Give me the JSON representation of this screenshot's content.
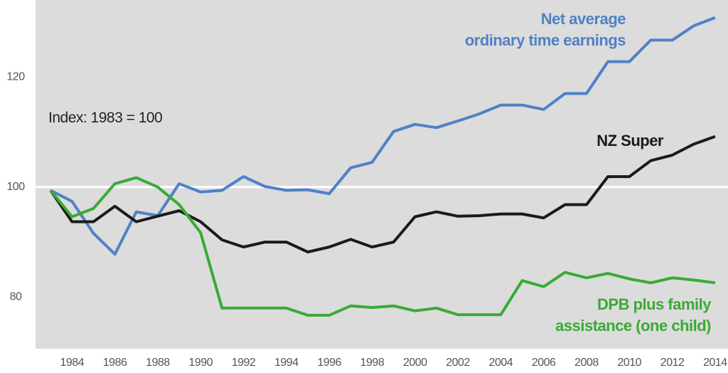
{
  "chart_data": {
    "type": "line",
    "annotation": "Index: 1983 = 100",
    "x": [
      1983,
      1984,
      1985,
      1986,
      1987,
      1988,
      1989,
      1990,
      1991,
      1992,
      1993,
      1994,
      1995,
      1996,
      1997,
      1998,
      1999,
      2000,
      2001,
      2002,
      2003,
      2004,
      2005,
      2006,
      2007,
      2008,
      2009,
      2010,
      2011,
      2012,
      2013,
      2014
    ],
    "series": [
      {
        "name": "Net average\nordinary time earnings",
        "color": "#4f81c7",
        "values": [
          99.4,
          97.4,
          91.6,
          87.8,
          95.5,
          94.8,
          100.6,
          99.1,
          99.4,
          101.9,
          100.1,
          99.4,
          99.5,
          98.8,
          103.5,
          104.5,
          110.1,
          111.4,
          110.8,
          112,
          113.3,
          114.9,
          114.9,
          114.1,
          117,
          117,
          122.8,
          122.8,
          126.7,
          126.7,
          129.3,
          130.8
        ]
      },
      {
        "name": "NZ Super",
        "color": "#1a1a1a",
        "values": [
          99.4,
          93.7,
          93.7,
          96.5,
          93.7,
          94.7,
          95.7,
          93.7,
          90.4,
          89.1,
          90,
          90,
          88.2,
          89.1,
          90.5,
          89.1,
          90,
          94.6,
          95.5,
          94.7,
          94.8,
          95.1,
          95.1,
          94.4,
          96.8,
          96.8,
          101.9,
          101.9,
          104.8,
          105.8,
          107.8,
          109.2
        ]
      },
      {
        "name": "DPB plus family\nassistance (one child)",
        "color": "#3aaa35",
        "values": [
          99.4,
          94.6,
          96.1,
          100.6,
          101.7,
          100,
          96.8,
          91.7,
          78,
          78,
          78,
          78,
          76.7,
          76.7,
          78.4,
          78.1,
          78.4,
          77.5,
          78,
          76.8,
          76.8,
          76.8,
          83,
          81.9,
          84.5,
          83.5,
          84.3,
          83.3,
          82.6,
          83.5,
          83.1,
          82.6
        ]
      }
    ],
    "xlim": [
      1982.3,
      2014.6
    ],
    "xticks": [
      1984,
      1986,
      1988,
      1990,
      1992,
      1994,
      1996,
      1998,
      2000,
      2002,
      2004,
      2006,
      2008,
      2010,
      2012,
      2014
    ],
    "ylim": [
      70.6,
      134
    ],
    "yticks": [
      80,
      100,
      120
    ],
    "gridline_at": 100
  }
}
